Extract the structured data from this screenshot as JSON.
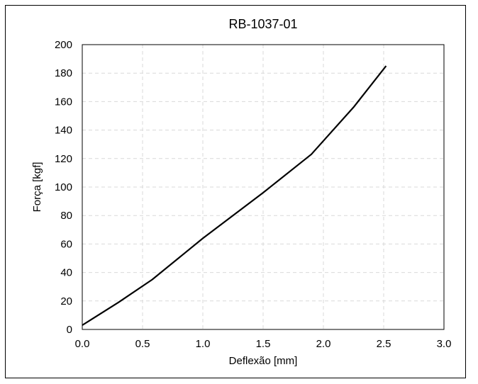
{
  "chart_data": {
    "type": "line",
    "title": "RB-1037-01",
    "xlabel": "Deflexão [mm]",
    "ylabel": "Força [kgf]",
    "xlim": [
      0.0,
      3.0
    ],
    "ylim": [
      0,
      200
    ],
    "xticks": [
      "0.0",
      "0.5",
      "1.0",
      "1.5",
      "2.0",
      "2.5",
      "3.0"
    ],
    "yticks": [
      "0",
      "20",
      "40",
      "60",
      "80",
      "100",
      "120",
      "140",
      "160",
      "180",
      "200"
    ],
    "grid": true,
    "series": [
      {
        "color": "#000000",
        "x": [
          0.0,
          0.3,
          0.58,
          1.0,
          1.5,
          1.9,
          2.25,
          2.52
        ],
        "y": [
          3,
          19,
          35,
          64,
          96,
          123,
          156,
          185
        ]
      }
    ]
  }
}
